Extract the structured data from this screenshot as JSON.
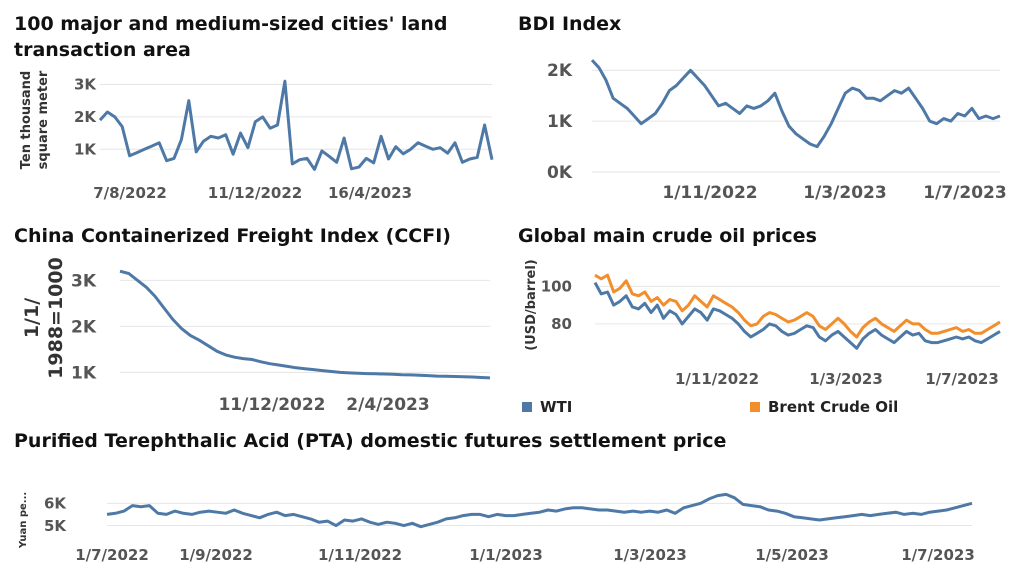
{
  "colors": {
    "blue": "#4e79a7",
    "orange": "#f28e2b"
  },
  "chart_data": [
    {
      "id": "land",
      "type": "line",
      "title": "100 major and medium-sized cities' land transaction area",
      "title_lines": [
        "100 major and medium-sized cities' land",
        "transaction area"
      ],
      "ylabel": "Ten thousand square meter",
      "ylabel_lines": [
        "Ten thousand",
        "square meter"
      ],
      "ylim": [
        300,
        3200
      ],
      "y_ticks": [
        {
          "v": 1000,
          "label": "1K"
        },
        {
          "v": 2000,
          "label": "2K"
        },
        {
          "v": 3000,
          "label": "3K"
        }
      ],
      "x_tick_labels": [
        "7/8/2022",
        "11/12/2022",
        "16/4/2023"
      ],
      "series": [
        {
          "values": [
            1900,
            2150,
            2000,
            1700,
            800,
            900,
            1000,
            1100,
            1200,
            650,
            720,
            1300,
            2500,
            920,
            1250,
            1400,
            1350,
            1450,
            850,
            1500,
            1050,
            1850,
            2000,
            1650,
            1750,
            3100,
            550,
            680,
            720,
            380,
            950,
            780,
            600,
            1350,
            400,
            450,
            720,
            580,
            1400,
            700,
            1080,
            860,
            1000,
            1200,
            1100,
            1000,
            1050,
            880,
            1200,
            600,
            700,
            750,
            1750,
            680
          ]
        }
      ]
    },
    {
      "id": "bdi",
      "type": "line",
      "title": "BDI Index",
      "ylim": [
        0,
        2300
      ],
      "y_ticks": [
        {
          "v": 0,
          "label": "0K"
        },
        {
          "v": 1000,
          "label": "1K"
        },
        {
          "v": 2000,
          "label": "2K"
        }
      ],
      "x_tick_labels": [
        "1/11/2022",
        "1/3/2023",
        "1/7/2023"
      ],
      "series": [
        {
          "values": [
            2200,
            2050,
            1800,
            1450,
            1350,
            1250,
            1100,
            950,
            1050,
            1150,
            1350,
            1600,
            1700,
            1850,
            2000,
            1850,
            1700,
            1500,
            1300,
            1350,
            1250,
            1150,
            1300,
            1250,
            1300,
            1400,
            1550,
            1200,
            900,
            750,
            650,
            550,
            500,
            700,
            950,
            1250,
            1550,
            1650,
            1600,
            1450,
            1450,
            1400,
            1500,
            1600,
            1550,
            1650,
            1450,
            1250,
            1000,
            950,
            1050,
            1000,
            1150,
            1100,
            1250,
            1050,
            1100,
            1050,
            1100
          ]
        }
      ]
    },
    {
      "id": "ccfi",
      "type": "line",
      "title": "China Containerized Freight Index (CCFI)",
      "ylabel": "1/1/ 1988=1000",
      "ylabel_lines": [
        "1/1/",
        "1988=1000"
      ],
      "ylim": [
        900,
        3400
      ],
      "y_ticks": [
        {
          "v": 1000,
          "label": "1K"
        },
        {
          "v": 2000,
          "label": "2K"
        },
        {
          "v": 3000,
          "label": "3K"
        }
      ],
      "x_tick_labels": [
        "11/12/2022",
        "2/4/2023"
      ],
      "series": [
        {
          "values": [
            3200,
            3150,
            3000,
            2850,
            2650,
            2400,
            2150,
            1950,
            1800,
            1700,
            1580,
            1460,
            1380,
            1330,
            1300,
            1280,
            1230,
            1190,
            1160,
            1130,
            1100,
            1080,
            1060,
            1040,
            1020,
            1000,
            990,
            980,
            975,
            970,
            965,
            960,
            950,
            945,
            940,
            930,
            920,
            915,
            910,
            905,
            900,
            890,
            880
          ]
        }
      ]
    },
    {
      "id": "oil",
      "type": "line",
      "title": "Global main crude oil prices",
      "ylabel": "(USD/barrel)",
      "ylim": [
        65,
        113
      ],
      "y_ticks": [
        {
          "v": 80,
          "label": "80"
        },
        {
          "v": 100,
          "label": "100"
        }
      ],
      "x_tick_labels": [
        "1/11/2022",
        "1/3/2023",
        "1/7/2023"
      ],
      "legend": [
        {
          "name": "WTI",
          "color": "#4e79a7"
        },
        {
          "name": "Brent Crude Oil",
          "color": "#f28e2b"
        }
      ],
      "series": [
        {
          "name": "WTI",
          "values": [
            102,
            96,
            97,
            90,
            92,
            95,
            89,
            88,
            91,
            86,
            90,
            83,
            87,
            85,
            80,
            84,
            88,
            86,
            82,
            88,
            87,
            85,
            83,
            80,
            76,
            73,
            75,
            77,
            80,
            79,
            76,
            74,
            75,
            77,
            79,
            78,
            73,
            71,
            74,
            76,
            73,
            70,
            67,
            72,
            75,
            77,
            74,
            72,
            70,
            73,
            76,
            74,
            75,
            71,
            70,
            70,
            71,
            72,
            73,
            72,
            73,
            71,
            70,
            72,
            74,
            76
          ]
        },
        {
          "name": "Brent Crude Oil",
          "values": [
            106,
            104,
            106,
            97,
            99,
            103,
            96,
            95,
            97,
            92,
            94,
            90,
            93,
            92,
            87,
            90,
            95,
            92,
            89,
            95,
            93,
            91,
            89,
            86,
            82,
            79,
            80,
            84,
            86,
            85,
            83,
            81,
            82,
            84,
            86,
            84,
            79,
            77,
            80,
            83,
            80,
            76,
            73,
            78,
            81,
            83,
            80,
            78,
            76,
            79,
            82,
            80,
            80,
            77,
            75,
            75,
            76,
            77,
            78,
            76,
            77,
            75,
            75,
            77,
            79,
            81
          ]
        }
      ]
    },
    {
      "id": "pta",
      "type": "line",
      "title": "Purified Terephthalic Acid (PTA) domestic futures settlement price",
      "ylabel": "Yuan pe...",
      "ylim": [
        4800,
        6600
      ],
      "y_ticks": [
        {
          "v": 5000,
          "label": "5K"
        },
        {
          "v": 6000,
          "label": "6K"
        }
      ],
      "x_tick_labels": [
        "1/7/2022",
        "1/9/2022",
        "1/11/2022",
        "1/1/2023",
        "1/3/2023",
        "1/5/2023",
        "1/7/2023"
      ],
      "series": [
        {
          "values": [
            5500,
            5550,
            5650,
            5900,
            5850,
            5900,
            5550,
            5500,
            5650,
            5550,
            5500,
            5600,
            5650,
            5600,
            5550,
            5700,
            5550,
            5450,
            5350,
            5500,
            5600,
            5450,
            5500,
            5400,
            5300,
            5150,
            5200,
            5000,
            5250,
            5200,
            5300,
            5150,
            5050,
            5150,
            5100,
            5000,
            5100,
            4950,
            5050,
            5150,
            5300,
            5350,
            5450,
            5500,
            5500,
            5400,
            5500,
            5450,
            5450,
            5500,
            5550,
            5600,
            5700,
            5650,
            5750,
            5800,
            5800,
            5750,
            5700,
            5700,
            5650,
            5600,
            5650,
            5600,
            5650,
            5600,
            5700,
            5550,
            5800,
            5900,
            6000,
            6200,
            6350,
            6400,
            6250,
            5950,
            5900,
            5850,
            5700,
            5650,
            5550,
            5400,
            5350,
            5300,
            5250,
            5300,
            5350,
            5400,
            5450,
            5500,
            5450,
            5500,
            5550,
            5600,
            5500,
            5550,
            5500,
            5600,
            5650,
            5700,
            5800,
            5900,
            6000
          ]
        }
      ]
    }
  ]
}
